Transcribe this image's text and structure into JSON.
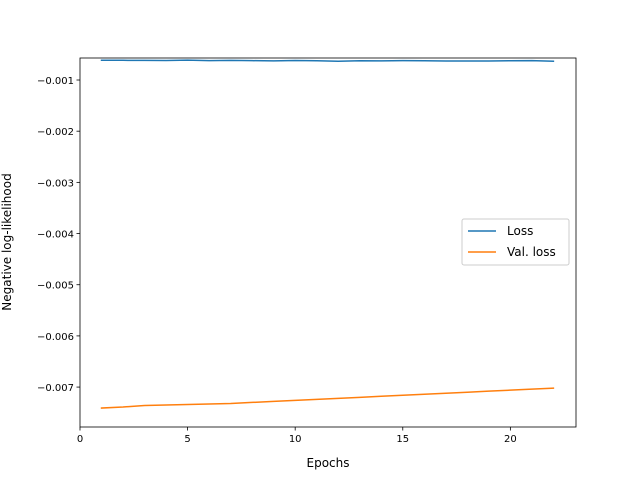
{
  "chart_data": {
    "type": "line",
    "title": "",
    "xlabel": "Epochs",
    "ylabel": "Negative log-likelihood",
    "xlim": [
      0,
      23.05
    ],
    "ylim": [
      -0.00778,
      -0.00057
    ],
    "xticks": [
      0,
      5,
      10,
      15,
      20
    ],
    "xtick_labels": [
      "0",
      "5",
      "10",
      "15",
      "20"
    ],
    "yticks": [
      -0.001,
      -0.002,
      -0.003,
      -0.004,
      -0.005,
      -0.006,
      -0.007
    ],
    "ytick_labels": [
      "−0.001",
      "−0.002",
      "−0.003",
      "−0.004",
      "−0.005",
      "−0.006",
      "−0.007"
    ],
    "grid": false,
    "legend_position": "center-right",
    "x": [
      1,
      2,
      3,
      4,
      5,
      6,
      7,
      8,
      9,
      10,
      11,
      12,
      13,
      14,
      15,
      16,
      17,
      18,
      19,
      20,
      21,
      22
    ],
    "series": [
      {
        "name": "Loss",
        "color": "#1f77b4",
        "values": [
          -0.000615,
          -0.000615,
          -0.000617,
          -0.000619,
          -0.000611,
          -0.000622,
          -0.000617,
          -0.000622,
          -0.000626,
          -0.00062,
          -0.000624,
          -0.000633,
          -0.000624,
          -0.000626,
          -0.000622,
          -0.000624,
          -0.000628,
          -0.000628,
          -0.000628,
          -0.000624,
          -0.000622,
          -0.000633
        ]
      },
      {
        "name": "Val. loss",
        "color": "#ff7f0e",
        "values": [
          -0.00741,
          -0.00739,
          -0.00736,
          -0.00735,
          -0.00734,
          -0.00733,
          -0.00732,
          -0.0073,
          -0.00728,
          -0.00726,
          -0.00724,
          -0.00722,
          -0.0072,
          -0.00718,
          -0.00716,
          -0.00714,
          -0.00712,
          -0.0071,
          -0.00708,
          -0.00706,
          -0.00704,
          -0.00702
        ]
      }
    ]
  }
}
